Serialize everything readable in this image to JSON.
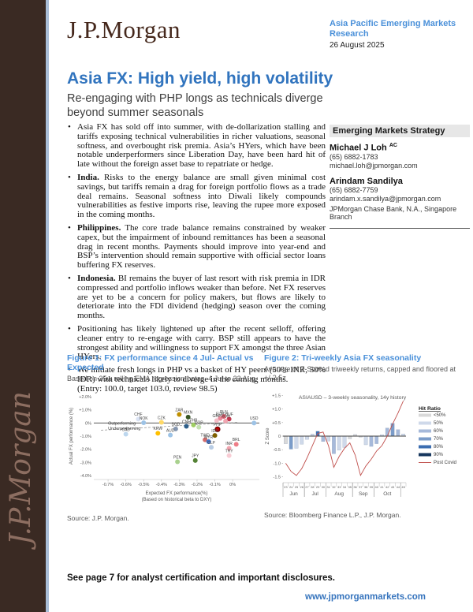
{
  "strip": {
    "script_logo": "J.P.Morgan"
  },
  "header": {
    "logo": "J.P.Morgan",
    "meta_line1": "Asia Pacific Emerging Markets",
    "meta_line2": "Research",
    "date": "26 August 2025"
  },
  "title": "Asia FX: High yield, high volatility",
  "subtitle": "Re-engaging with PHP longs as technicals diverge beyond summer seasonals",
  "bullets": [
    {
      "bold": "",
      "text": "Asia FX has sold off into summer, with de-dollarization stalling and tariffs exposing technical vulnerabilities in richer valuations, seasonal softness, and overbought risk premia. Asia’s HYers, which have been notable underperformers since Liberation Day, have been hard hit of late without the foreign asset base to repatriate or hedge."
    },
    {
      "bold": "India. ",
      "text": "Risks to the energy balance are small given minimal cost savings, but tariffs remain a drag for foreign portfolio flows as a trade deal remains. Seasonal softness into Diwali likely compounds vulnerabilities as festive imports rise, leaving the rupee more exposed in the coming months."
    },
    {
      "bold": "Philippines. ",
      "text": "The core trade balance remains constrained by weaker capex, but the impairment of inbound remittances has been a seasonal drag in recent months. Payments should improve into year-end and BSP’s intervention should remain supportive with official sector loans buffering FX reserves."
    },
    {
      "bold": "Indonesia. ",
      "text": "BI remains the buyer of last resort with risk premia in IDR compressed and portfolio inflows weaker than before. Net FX reserves are yet to be a concern for policy makers, but flows are likely to deteriorate into the FDI dividend (hedging) season over the coming months."
    },
    {
      "bold": "",
      "text": "Positioning has likely lightened up after the recent selloff, offering cleaner entry to re-engage with carry. BSP still appears to have the strongest ability and willingness to support FX amongst the three Asian HYers."
    },
    {
      "bold": "",
      "text": "We initiate fresh longs in PHP vs a basket of HY peers (50% INR, 50% IDR) with technicals likely to diverge in the coming months.",
      "line2": "(Entry: 100.0, target 103.0, review 98.5)"
    }
  ],
  "sidebar": {
    "heading": "Emerging Markets Strategy",
    "analysts": [
      {
        "name": "Michael J Loh",
        "designation": "AC",
        "phone": "(65) 6882-1783",
        "email": "michael.loh@jpmorgan.com"
      },
      {
        "name": "Arindam Sandilya",
        "designation": "",
        "phone": "(65) 6882-7759",
        "email": "arindam.x.sandilya@jpmorgan.com"
      }
    ],
    "org": "JPMorgan Chase Bank, N.A., Singapore Branch"
  },
  "figures": {
    "fig1": {
      "title": "Figure 1: FX performance since 4 Jul- Actual vs Expected",
      "subtitle": "Based on 35w rolling EMA regression betas. 4 Jul to 22 Aug",
      "source": "Source: J.P. Morgan."
    },
    "fig2": {
      "title": "Figure 2: Tri-weekly Asia FX seasonality",
      "subtitle": "Average of Z-Scored triweekly returns, capped and floored at +/-2.5z",
      "source": "Source: Bloomberg Finance L.P., J.P. Morgan."
    }
  },
  "footer": {
    "disclosure": "See page 7 for analyst certification and important disclosures.",
    "url": "www.jpmorganmarkets.com"
  },
  "colors": {
    "title_blue": "#3174be",
    "figure_blue": "#4a90d9",
    "strip_brown": "#3a2a23",
    "strip_edge_blue": "#a9bed8",
    "post_covid_red": "#c0504d"
  },
  "chart_data": [
    {
      "type": "scatter",
      "title": "FX performance since 4 Jul- Actual vs Expected",
      "xlabel": "Expected FX performance(%)",
      "xlabel2": "(Based on historical beta to DXY)",
      "ylabel": "Actual FX performance (%)",
      "xlim": [
        -0.78,
        0.15
      ],
      "ylim": [
        -4.3,
        2.3
      ],
      "xticks": {
        "values": [
          -0.7,
          -0.6,
          -0.5,
          -0.4,
          -0.3,
          -0.2,
          -0.1,
          0
        ],
        "labels": [
          "-0.7%",
          "-0.6%",
          "-0.5%",
          "-0.4%",
          "-0.3%",
          "-0.2%",
          "-0.1%",
          "0%"
        ]
      },
      "yticks": {
        "values": [
          2,
          1,
          0,
          -1,
          -2,
          -3,
          -4
        ],
        "labels": [
          "+2.0%",
          "+1.0%",
          "0%",
          "-1.0%",
          "-2.0%",
          "-3.0%",
          "-4.0%"
        ]
      },
      "annotations": [
        {
          "text": "Outperforming",
          "x": -0.7,
          "y": -0.12
        },
        {
          "text": "Underperforming",
          "x": -0.7,
          "y": -0.52
        }
      ],
      "trendline": {
        "x1": -0.74,
        "y1": -0.55,
        "x2": 0.03,
        "y2": 0.05
      },
      "points": [
        {
          "label": "CHF",
          "x": -0.53,
          "y": 0.3,
          "color": "#d9e2f3"
        },
        {
          "label": "NOK",
          "x": -0.5,
          "y": 0.02,
          "color": "#9dc3e6"
        },
        {
          "label": "CZK",
          "x": -0.4,
          "y": 0.05,
          "color": "#ffd966"
        },
        {
          "label": "ZAR",
          "x": -0.3,
          "y": 0.65,
          "color": "#bf8f00"
        },
        {
          "label": "MXN",
          "x": -0.25,
          "y": 0.45,
          "color": "#375623"
        },
        {
          "label": "EUR",
          "x": -0.07,
          "y": 0.35,
          "color": "#e8889a"
        },
        {
          "label": "PLN",
          "x": -0.05,
          "y": 0.5,
          "color": "#e06070"
        },
        {
          "label": "HUF",
          "x": -0.02,
          "y": 0.3,
          "color": "#c0384e"
        },
        {
          "label": "RON",
          "x": -0.04,
          "y": 0.15,
          "color": "#f0a6b1"
        },
        {
          "label": "GBP",
          "x": -0.09,
          "y": 0.18,
          "color": "#f3bcc6"
        },
        {
          "label": "CNH",
          "x": -0.26,
          "y": -0.25,
          "color": "#2e5f8a"
        },
        {
          "label": "THB",
          "x": -0.22,
          "y": -0.15,
          "color": "#9fce63"
        },
        {
          "label": "COP",
          "x": -0.19,
          "y": -0.32,
          "color": "#c5e0b4"
        },
        {
          "label": "SGD",
          "x": -0.32,
          "y": -0.45,
          "color": "#8496b0"
        },
        {
          "label": "KRW",
          "x": -0.42,
          "y": -0.78,
          "color": "#ffc000"
        },
        {
          "label": "AUD",
          "x": -0.35,
          "y": -0.92,
          "color": "#9dc3e6"
        },
        {
          "label": "CAD",
          "x": -0.6,
          "y": -0.85,
          "color": "#bdd7ee"
        },
        {
          "label": "PHP",
          "x": -0.085,
          "y": -0.48,
          "color": "#c00000",
          "highlight": true
        },
        {
          "label": "IDR",
          "x": -0.1,
          "y": -0.95,
          "color": "#7f6000"
        },
        {
          "label": "TWD",
          "x": -0.155,
          "y": -1.28,
          "color": "#d26b6b"
        },
        {
          "label": "MYR",
          "x": -0.135,
          "y": -1.42,
          "color": "#4472c4"
        },
        {
          "label": "CLP",
          "x": -0.12,
          "y": -1.85,
          "color": "#b8cce4"
        },
        {
          "label": "BRL",
          "x": 0.02,
          "y": -1.62,
          "color": "#ee7d87"
        },
        {
          "label": "INR",
          "x": -0.02,
          "y": -1.92,
          "color": "#f2a5b0"
        },
        {
          "label": "TRY",
          "x": -0.02,
          "y": -2.48,
          "color": "#f8ccd4"
        },
        {
          "label": "JPY",
          "x": -0.21,
          "y": -2.85,
          "color": "#548235"
        },
        {
          "label": "PEN",
          "x": -0.31,
          "y": -2.95,
          "color": "#a9d18e"
        },
        {
          "label": "USD",
          "x": 0.12,
          "y": 0.0,
          "color": "#9dc3e6"
        }
      ]
    },
    {
      "type": "bar+line",
      "inner_title": "ASIAUSD – 3-weekly seasonality, 14y history",
      "ylabel": "Z Score",
      "ylim": [
        -1.6,
        1.6
      ],
      "yticks": {
        "values": [
          1.5,
          1.0,
          0.5,
          0,
          -0.5,
          -1.0,
          -1.5
        ],
        "labels": [
          "+1.5",
          "+1.0",
          "+0.5",
          "0",
          "-0.5",
          "-1.0",
          "-1.5"
        ]
      },
      "weeks": [
        23,
        24,
        25,
        26,
        27,
        28,
        29,
        30,
        31,
        32,
        33,
        34,
        35,
        36,
        37,
        38,
        39,
        40,
        41,
        42,
        43,
        44,
        45
      ],
      "bars": [
        {
          "week": 23,
          "value": -0.28,
          "hit": "<50%"
        },
        {
          "week": 24,
          "value": -0.48,
          "hit": "70%"
        },
        {
          "week": 25,
          "value": -0.45,
          "hit": "50%"
        },
        {
          "week": 26,
          "value": -0.3,
          "hit": "50%"
        },
        {
          "week": 27,
          "value": -0.12,
          "hit": "50%"
        },
        {
          "week": 28,
          "value": 0.08,
          "hit": "50%"
        },
        {
          "week": 29,
          "value": 0.18,
          "hit": "80%"
        },
        {
          "week": 30,
          "value": -0.2,
          "hit": "60%"
        },
        {
          "week": 31,
          "value": -0.18,
          "hit": "50%"
        },
        {
          "week": 32,
          "value": -0.65,
          "hit": "60%"
        },
        {
          "week": 33,
          "value": -0.52,
          "hit": "50%"
        },
        {
          "week": 34,
          "value": -0.42,
          "hit": "50%"
        },
        {
          "week": 35,
          "value": -0.1,
          "hit": "<50%"
        },
        {
          "week": 36,
          "value": 0.06,
          "hit": "<50%"
        },
        {
          "week": 37,
          "value": -0.04,
          "hit": "<50%"
        },
        {
          "week": 38,
          "value": -0.32,
          "hit": "50%"
        },
        {
          "week": 39,
          "value": -0.38,
          "hit": "60%"
        },
        {
          "week": 40,
          "value": -0.28,
          "hit": "60%"
        },
        {
          "week": 41,
          "value": 0.05,
          "hit": "50%"
        },
        {
          "week": 42,
          "value": 0.3,
          "hit": "60%"
        },
        {
          "week": 43,
          "value": 0.47,
          "hit": "70%"
        },
        {
          "week": 44,
          "value": 0.24,
          "hit": "60%"
        },
        {
          "week": 45,
          "value": 0.08,
          "hit": "50%"
        }
      ],
      "line_name": "Post Covid",
      "line": [
        -1.0,
        -1.3,
        -1.45,
        -1.2,
        -0.8,
        -0.35,
        0.1,
        0.15,
        -0.35,
        -1.15,
        -0.75,
        -0.45,
        -0.25,
        -0.7,
        -1.45,
        -1.1,
        -0.85,
        -0.55,
        -0.35,
        0.0,
        0.45,
        0.85,
        1.3
      ],
      "months": [
        {
          "label": "Jun",
          "from": 23,
          "to": 26
        },
        {
          "label": "Jul",
          "from": 27,
          "to": 30
        },
        {
          "label": "Aug",
          "from": 31,
          "to": 35
        },
        {
          "label": "Sep",
          "from": 36,
          "to": 39
        },
        {
          "label": "Oct",
          "from": 40,
          "to": 44
        }
      ],
      "legend": {
        "title": "Hit Ratio",
        "entries": [
          {
            "label": "<50%",
            "color": "#d9d9d9"
          },
          {
            "label": "50%",
            "color": "#cfd9ea"
          },
          {
            "label": "60%",
            "color": "#a6b9da"
          },
          {
            "label": "70%",
            "color": "#7b9cc9"
          },
          {
            "label": "80%",
            "color": "#3b6db0"
          },
          {
            "label": "90%",
            "color": "#17375e"
          }
        ],
        "line_label": "Post Covid",
        "line_color": "#c0504d"
      }
    }
  ]
}
